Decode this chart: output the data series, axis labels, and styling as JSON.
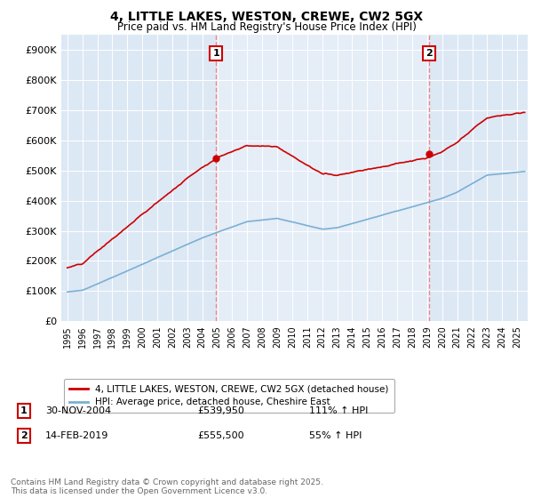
{
  "title": "4, LITTLE LAKES, WESTON, CREWE, CW2 5GX",
  "subtitle": "Price paid vs. HM Land Registry's House Price Index (HPI)",
  "sale1_label": "1",
  "sale1_date_str": "30-NOV-2004",
  "sale1_price": 539950,
  "sale1_price_str": "£539,950",
  "sale1_pct": "111% ↑ HPI",
  "sale1_year": 2004.92,
  "sale2_label": "2",
  "sale2_date_str": "14-FEB-2019",
  "sale2_price": 555500,
  "sale2_price_str": "£555,500",
  "sale2_pct": "55% ↑ HPI",
  "sale2_year": 2019.12,
  "legend_line1": "4, LITTLE LAKES, WESTON, CREWE, CW2 5GX (detached house)",
  "legend_line2": "HPI: Average price, detached house, Cheshire East",
  "footer": "Contains HM Land Registry data © Crown copyright and database right 2025.\nThis data is licensed under the Open Government Licence v3.0.",
  "red_color": "#cc0000",
  "blue_color": "#7ab0d4",
  "dashed_color": "#ee8888",
  "plot_bg": "#dde8f5",
  "ylim_max": 950000,
  "yticks": [
    0,
    100000,
    200000,
    300000,
    400000,
    500000,
    600000,
    700000,
    800000,
    900000
  ],
  "xmin": 1995,
  "xmax": 2025
}
